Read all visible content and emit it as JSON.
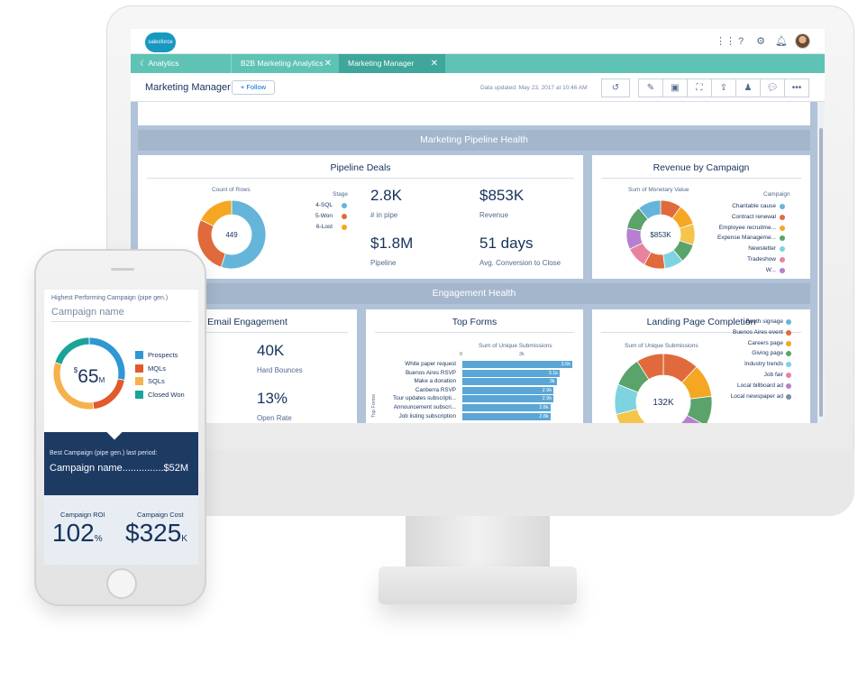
{
  "app": {
    "logo_text": "salesforce",
    "tabs": [
      {
        "label": "Analytics"
      },
      {
        "label": "B2B Marketing Analytics"
      },
      {
        "label": "Marketing Manager"
      }
    ]
  },
  "page": {
    "title": "Marketing Manager",
    "follow_label": "+ Follow",
    "updated": "Data updated: May 23, 2017 at 10:46 AM"
  },
  "sections": {
    "pipeline": "Marketing Pipeline Health",
    "engagement": "Engagement Health"
  },
  "pipeline_deals": {
    "title": "Pipeline Deals",
    "donut_title": "Count of Rows",
    "donut_center": "449",
    "legend_title": "Stage",
    "legend": [
      {
        "label": "4-SQL",
        "color": "#64b5d9"
      },
      {
        "label": "5-Won",
        "color": "#e06a3b"
      },
      {
        "label": "6-Lost",
        "color": "#f5a623"
      }
    ],
    "kpis": [
      {
        "value": "2.8K",
        "label": "# in pipe"
      },
      {
        "value": "$853K",
        "label": "Revenue"
      },
      {
        "value": "$1.8M",
        "label": "Pipeline"
      },
      {
        "value": "51 days",
        "label": "Avg. Conversion to Close"
      }
    ]
  },
  "revenue_by_campaign": {
    "title": "Revenue by Campaign",
    "donut_title": "Sum of Monetary Value",
    "donut_center": "$853K",
    "legend_title": "Campaign",
    "legend": [
      {
        "label": "Charitable cause",
        "color": "#64b5d9"
      },
      {
        "label": "Contract renewal",
        "color": "#e06a3b"
      },
      {
        "label": "Employee recruitme...",
        "color": "#f5a623"
      },
      {
        "label": "Expense Manageme...",
        "color": "#5aa36a"
      },
      {
        "label": "Newsletter",
        "color": "#7ed3e0"
      },
      {
        "label": "Tradeshow",
        "color": "#e7839e"
      },
      {
        "label": "W...",
        "color": "#b77fd1"
      }
    ]
  },
  "email_engagement": {
    "title": "Email Engagement",
    "kpis": [
      {
        "value": "40K",
        "label": "Hard Bounces"
      },
      {
        "value": "13%",
        "label": "Open Rate"
      }
    ]
  },
  "top_forms": {
    "title": "Top Forms",
    "measure": "Sum of Unique Submissions",
    "axis_label": "Top Forms",
    "axis_ticks": [
      "0",
      "2k"
    ],
    "rows": [
      {
        "label": "White paper request",
        "value": 3.5,
        "text": "3.5k"
      },
      {
        "label": "Buenos Aires RSVP",
        "value": 3.1,
        "text": "3.1k"
      },
      {
        "label": "Make a donation",
        "value": 3.0,
        "text": "3k"
      },
      {
        "label": "Canberra RSVP",
        "value": 2.9,
        "text": "2.9k"
      },
      {
        "label": "Tour updates subscripti...",
        "value": 2.9,
        "text": "2.9k"
      },
      {
        "label": "Announcement subscri...",
        "value": 2.8,
        "text": "2.8k"
      },
      {
        "label": "Job listing subscription",
        "value": 2.8,
        "text": "2.8k"
      }
    ]
  },
  "landing_page": {
    "title": "Landing Page Completion",
    "donut_title": "Sum of Unique Submissions",
    "donut_center": "132K",
    "legend": [
      {
        "label": "Booth signage",
        "color": "#64b5d9"
      },
      {
        "label": "Buenos Aires event",
        "color": "#e06a3b"
      },
      {
        "label": "Careers page",
        "color": "#f5a623"
      },
      {
        "label": "Giving page",
        "color": "#5aa36a"
      },
      {
        "label": "Industry trends",
        "color": "#7ed3e0"
      },
      {
        "label": "Job fair",
        "color": "#e7839e"
      },
      {
        "label": "Local billboard ad",
        "color": "#b77fd1"
      },
      {
        "label": "Local newspaper ad",
        "color": "#7a8fa6"
      }
    ]
  },
  "mobile": {
    "header": "Highest Performing Campaign (pipe gen.)",
    "campaign_placeholder": "Campaign name",
    "donut_value": "65",
    "donut_currency": "$",
    "donut_suffix": "M",
    "legend": [
      {
        "label": "Prospects",
        "color": "#2f97d3"
      },
      {
        "label": "MQLs",
        "color": "#e2592a"
      },
      {
        "label": "SQLs",
        "color": "#f5b24c"
      },
      {
        "label": "Closed Won",
        "color": "#1aa399"
      }
    ],
    "best_label": "Best Campaign (pipe gen.) last period:",
    "best_value": "Campaign name...............$52M",
    "roi_label": "Campaign ROI",
    "roi_value": "102",
    "roi_unit": "%",
    "cost_label": "Campaign Cost",
    "cost_value": "$325",
    "cost_unit": "K"
  }
}
